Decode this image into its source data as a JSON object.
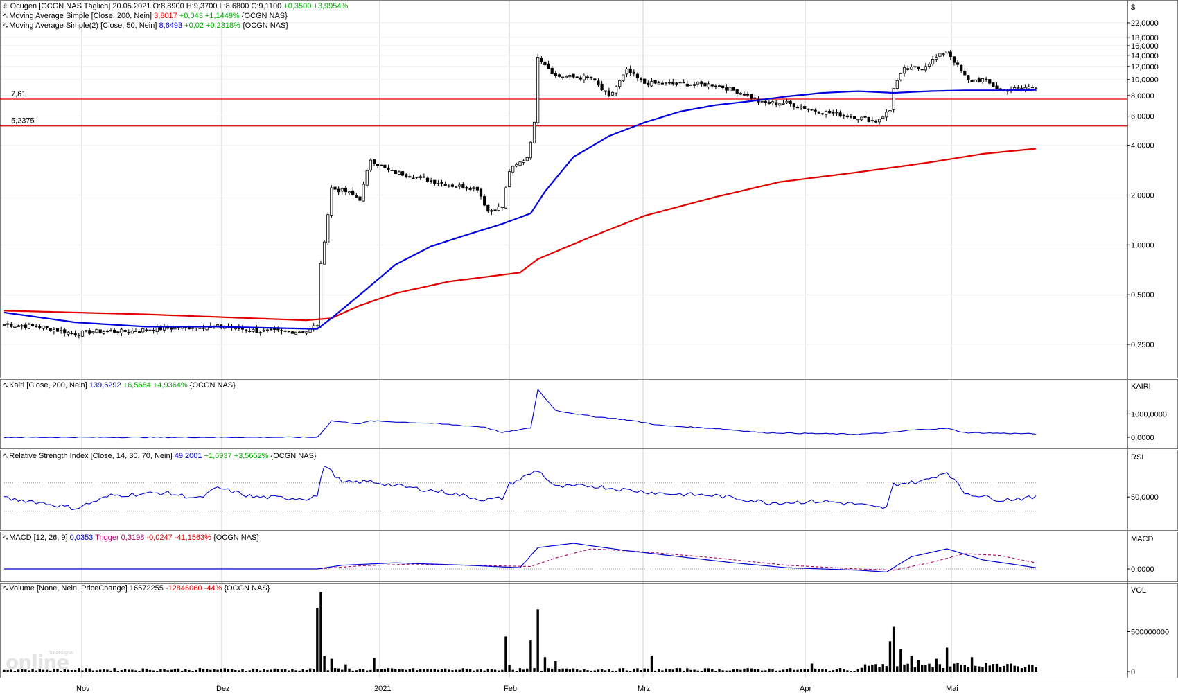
{
  "colors": {
    "up": "#ffffff",
    "down": "#000000",
    "sma200": "#e00000",
    "sma50": "#0000dd",
    "line": "#0000cc",
    "neg": "#e00000",
    "pos": "#00aa00",
    "grid": "#cccccc",
    "hline": "#dd0000",
    "trigger": "#aa0066"
  },
  "headers": {
    "price": {
      "title": "Ocugen [OCGN NAS  Täglich]",
      "date": "20.05.2021",
      "ohlc": "O:8,8900 H:9,3700 L:8,6800 C:9,1100",
      "chg": "+0,3500 +3,9954%"
    },
    "sma200": {
      "label": "Moving Average Simple [Close, 200, Nein]",
      "val": "3,8017",
      "chg": "+0,043 +1,1449%",
      "sym": "{OCGN NAS}"
    },
    "sma50": {
      "label": "Moving Average Simple(2) [Close, 50, Nein]",
      "val": "8,6493",
      "chg": "+0,02 +0,2318%",
      "sym": "{OCGN NAS}"
    },
    "kairi": {
      "label": "Kairi [Close, 200, Nein]",
      "val": "139,6292",
      "chg": "+6,5684 +4,9364%",
      "sym": "{OCGN NAS}"
    },
    "rsi": {
      "label": "Relative Strength Index [Close, 14, 30, 70, Nein]",
      "val": "49,2001",
      "chg": "+1,6937 +3,5652%",
      "sym": "{OCGN NAS}"
    },
    "macd": {
      "label": "MACD [12, 26, 9]",
      "val": "0,0353",
      "trig": "Trigger",
      "trigval": "0,3198",
      "chg": "-0,0247 -41,1563%",
      "sym": "{OCGN NAS}"
    },
    "vol": {
      "label": "Volume [None, Nein, PriceChange]",
      "val": "16572255",
      "chg": "-12846060 -44%",
      "sym": "{OCGN NAS}"
    }
  },
  "chart_data": {
    "type": "line",
    "price_axis": {
      "unit": "$",
      "scale": "log",
      "ticks": [
        "22,0000",
        "18,0000",
        "16,0000",
        "14,0000",
        "12,0000",
        "10,0000",
        "8,0000",
        "6,0000",
        "4,0000",
        "2,0000",
        "1,0000",
        "0,5000",
        "0,2500"
      ]
    },
    "hlines": [
      {
        "label": "7,61",
        "value": 7.61
      },
      {
        "label": "5,2375",
        "value": 5.2375
      }
    ],
    "x_labels": [
      "Nov",
      "Dez",
      "2021",
      "Feb",
      "Mrz",
      "Apr",
      "Mai"
    ],
    "kairi_axis": {
      "name": "KAIRI",
      "ticks": [
        "1000,0000",
        "0,0000"
      ]
    },
    "rsi_axis": {
      "name": "RSI",
      "ticks": [
        "50,0000"
      ]
    },
    "macd_axis": {
      "name": "MACD",
      "ticks": [
        "0,0000"
      ]
    },
    "vol_axis": {
      "name": "VOL",
      "ticks": [
        "500000000",
        "0"
      ]
    },
    "watermark": "online",
    "watermark_brand": "Tradesignal",
    "sma200_anchors": [
      [
        0,
        0.4
      ],
      [
        40,
        0.38
      ],
      [
        85,
        0.35
      ],
      [
        92,
        0.36
      ],
      [
        100,
        0.43
      ],
      [
        110,
        0.51
      ],
      [
        125,
        0.6
      ],
      [
        145,
        0.68
      ],
      [
        150,
        0.82
      ],
      [
        165,
        1.12
      ],
      [
        180,
        1.5
      ],
      [
        200,
        1.95
      ],
      [
        218,
        2.4
      ],
      [
        240,
        2.75
      ],
      [
        260,
        3.15
      ],
      [
        275,
        3.55
      ],
      [
        290,
        3.82
      ]
    ],
    "sma50_anchors": [
      [
        0,
        0.39
      ],
      [
        20,
        0.34
      ],
      [
        40,
        0.32
      ],
      [
        60,
        0.32
      ],
      [
        88,
        0.31
      ],
      [
        92,
        0.36
      ],
      [
        100,
        0.5
      ],
      [
        110,
        0.76
      ],
      [
        120,
        0.98
      ],
      [
        130,
        1.15
      ],
      [
        140,
        1.34
      ],
      [
        148,
        1.55
      ],
      [
        152,
        2.1
      ],
      [
        160,
        3.4
      ],
      [
        170,
        4.55
      ],
      [
        180,
        5.5
      ],
      [
        190,
        6.4
      ],
      [
        200,
        7.0
      ],
      [
        210,
        7.4
      ],
      [
        220,
        7.9
      ],
      [
        230,
        8.3
      ],
      [
        240,
        8.5
      ],
      [
        250,
        8.3
      ],
      [
        260,
        8.5
      ],
      [
        270,
        8.6
      ],
      [
        280,
        8.6
      ],
      [
        290,
        8.65
      ]
    ],
    "close_anchors": [
      [
        0,
        0.33
      ],
      [
        10,
        0.32
      ],
      [
        20,
        0.29
      ],
      [
        25,
        0.3
      ],
      [
        35,
        0.3
      ],
      [
        42,
        0.31
      ],
      [
        55,
        0.32
      ],
      [
        62,
        0.32
      ],
      [
        72,
        0.3
      ],
      [
        85,
        0.3
      ],
      [
        88,
        0.33
      ],
      [
        89,
        0.75
      ],
      [
        92,
        2.2
      ],
      [
        96,
        2.1
      ],
      [
        100,
        1.9
      ],
      [
        103,
        3.3
      ],
      [
        108,
        2.8
      ],
      [
        115,
        2.6
      ],
      [
        125,
        2.3
      ],
      [
        133,
        2.2
      ],
      [
        136,
        1.6
      ],
      [
        140,
        1.7
      ],
      [
        142,
        2.8
      ],
      [
        147,
        3.4
      ],
      [
        149,
        5.4
      ],
      [
        150,
        14.0
      ],
      [
        155,
        10.5
      ],
      [
        165,
        10.2
      ],
      [
        170,
        7.8
      ],
      [
        175,
        11.3
      ],
      [
        180,
        9.5
      ],
      [
        190,
        9.4
      ],
      [
        200,
        9.3
      ],
      [
        208,
        8.2
      ],
      [
        213,
        7.2
      ],
      [
        220,
        7.2
      ],
      [
        228,
        6.5
      ],
      [
        240,
        5.9
      ],
      [
        245,
        5.6
      ],
      [
        249,
        6.5
      ],
      [
        250,
        9.0
      ],
      [
        253,
        11.5
      ],
      [
        258,
        11.8
      ],
      [
        263,
        14.0
      ],
      [
        265,
        15.0
      ],
      [
        268,
        12.0
      ],
      [
        271,
        9.8
      ],
      [
        275,
        10.0
      ],
      [
        280,
        8.6
      ],
      [
        285,
        8.8
      ],
      [
        290,
        9.11
      ]
    ],
    "kairi_anchors": [
      [
        0,
        0
      ],
      [
        88,
        0
      ],
      [
        92,
        700
      ],
      [
        100,
        580
      ],
      [
        103,
        700
      ],
      [
        120,
        600
      ],
      [
        135,
        440
      ],
      [
        140,
        200
      ],
      [
        148,
        400
      ],
      [
        150,
        2050
      ],
      [
        155,
        1150
      ],
      [
        165,
        900
      ],
      [
        175,
        750
      ],
      [
        185,
        500
      ],
      [
        200,
        380
      ],
      [
        213,
        200
      ],
      [
        240,
        130
      ],
      [
        249,
        200
      ],
      [
        255,
        310
      ],
      [
        265,
        380
      ],
      [
        270,
        200
      ],
      [
        290,
        150
      ]
    ],
    "rsi_anchors": [
      [
        0,
        48
      ],
      [
        8,
        44
      ],
      [
        20,
        34
      ],
      [
        30,
        52
      ],
      [
        45,
        56
      ],
      [
        55,
        48
      ],
      [
        60,
        63
      ],
      [
        70,
        50
      ],
      [
        85,
        48
      ],
      [
        88,
        52
      ],
      [
        90,
        96
      ],
      [
        95,
        70
      ],
      [
        103,
        72
      ],
      [
        110,
        66
      ],
      [
        125,
        56
      ],
      [
        135,
        46
      ],
      [
        140,
        48
      ],
      [
        142,
        68
      ],
      [
        150,
        88
      ],
      [
        155,
        64
      ],
      [
        165,
        66
      ],
      [
        175,
        60
      ],
      [
        185,
        55
      ],
      [
        200,
        52
      ],
      [
        215,
        42
      ],
      [
        230,
        44
      ],
      [
        240,
        40
      ],
      [
        245,
        35
      ],
      [
        248,
        35
      ],
      [
        250,
        68
      ],
      [
        258,
        72
      ],
      [
        265,
        86
      ],
      [
        270,
        56
      ],
      [
        280,
        46
      ],
      [
        285,
        48
      ],
      [
        290,
        49
      ]
    ],
    "macd_anchors": [
      [
        0,
        0
      ],
      [
        88,
        0
      ],
      [
        95,
        0.06
      ],
      [
        110,
        0.1
      ],
      [
        130,
        0.06
      ],
      [
        145,
        0.02
      ],
      [
        150,
        0.35
      ],
      [
        160,
        0.42
      ],
      [
        175,
        0.3
      ],
      [
        190,
        0.2
      ],
      [
        205,
        0.1
      ],
      [
        220,
        0.02
      ],
      [
        240,
        -0.02
      ],
      [
        248,
        -0.05
      ],
      [
        255,
        0.2
      ],
      [
        265,
        0.33
      ],
      [
        275,
        0.15
      ],
      [
        290,
        0.02
      ]
    ],
    "trigger_anchors": [
      [
        0,
        0
      ],
      [
        88,
        0
      ],
      [
        100,
        0.05
      ],
      [
        115,
        0.08
      ],
      [
        130,
        0.06
      ],
      [
        148,
        0.04
      ],
      [
        155,
        0.18
      ],
      [
        165,
        0.33
      ],
      [
        180,
        0.28
      ],
      [
        200,
        0.18
      ],
      [
        220,
        0.06
      ],
      [
        240,
        0.0
      ],
      [
        250,
        -0.02
      ],
      [
        260,
        0.1
      ],
      [
        270,
        0.25
      ],
      [
        280,
        0.22
      ],
      [
        290,
        0.1
      ]
    ],
    "volume_spikes": [
      [
        88,
        800
      ],
      [
        89,
        1000
      ],
      [
        90,
        200
      ],
      [
        92,
        160
      ],
      [
        96,
        90
      ],
      [
        104,
        170
      ],
      [
        141,
        440
      ],
      [
        142,
        80
      ],
      [
        148,
        390
      ],
      [
        150,
        780
      ],
      [
        152,
        180
      ],
      [
        155,
        130
      ],
      [
        182,
        200
      ],
      [
        227,
        100
      ],
      [
        249,
        380
      ],
      [
        250,
        560
      ],
      [
        252,
        280
      ],
      [
        255,
        200
      ],
      [
        257,
        140
      ],
      [
        262,
        160
      ],
      [
        265,
        300
      ],
      [
        268,
        110
      ],
      [
        272,
        180
      ],
      [
        276,
        110
      ]
    ]
  }
}
